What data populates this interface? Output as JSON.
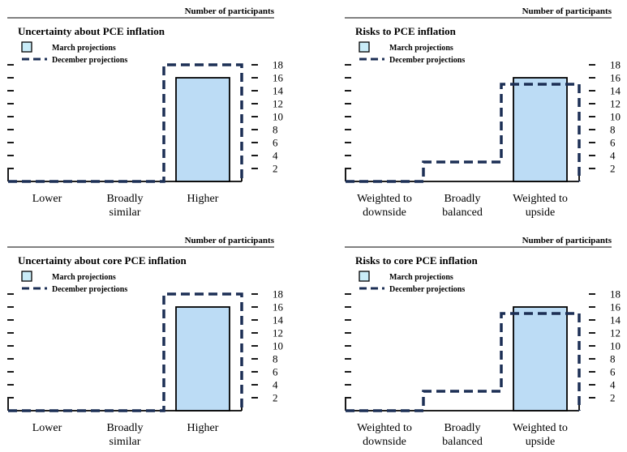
{
  "chart_data": [
    {
      "type": "bar",
      "title": "Uncertainty about PCE inflation",
      "ylabel": "Number of participants",
      "ylim": [
        0,
        18
      ],
      "yticks": [
        2,
        4,
        6,
        8,
        10,
        12,
        14,
        16,
        18
      ],
      "categories": [
        [
          "Lower"
        ],
        [
          "Broadly",
          "similar"
        ],
        [
          "Higher"
        ]
      ],
      "legend": [
        "March projections",
        "December projections"
      ],
      "series": [
        {
          "name": "March projections",
          "style": "bar",
          "values": [
            0,
            0,
            16
          ]
        },
        {
          "name": "December projections",
          "style": "dashed-step",
          "values": [
            0,
            0,
            18
          ]
        }
      ]
    },
    {
      "type": "bar",
      "title": "Risks to PCE inflation",
      "ylabel": "Number of participants",
      "ylim": [
        0,
        18
      ],
      "yticks": [
        2,
        4,
        6,
        8,
        10,
        12,
        14,
        16,
        18
      ],
      "categories": [
        [
          "Weighted to",
          "downside"
        ],
        [
          "Broadly",
          "balanced"
        ],
        [
          "Weighted to",
          "upside"
        ]
      ],
      "legend": [
        "March projections",
        "December projections"
      ],
      "series": [
        {
          "name": "March projections",
          "style": "bar",
          "values": [
            0,
            0,
            16
          ]
        },
        {
          "name": "December projections",
          "style": "dashed-step",
          "values": [
            0,
            3,
            15
          ]
        }
      ]
    },
    {
      "type": "bar",
      "title": "Uncertainty about core PCE inflation",
      "ylabel": "Number of participants",
      "ylim": [
        0,
        18
      ],
      "yticks": [
        2,
        4,
        6,
        8,
        10,
        12,
        14,
        16,
        18
      ],
      "categories": [
        [
          "Lower"
        ],
        [
          "Broadly",
          "similar"
        ],
        [
          "Higher"
        ]
      ],
      "legend": [
        "March projections",
        "December projections"
      ],
      "series": [
        {
          "name": "March projections",
          "style": "bar",
          "values": [
            0,
            0,
            16
          ]
        },
        {
          "name": "December projections",
          "style": "dashed-step",
          "values": [
            0,
            0,
            18
          ]
        }
      ]
    },
    {
      "type": "bar",
      "title": "Risks to core PCE inflation",
      "ylabel": "Number of participants",
      "ylim": [
        0,
        18
      ],
      "yticks": [
        2,
        4,
        6,
        8,
        10,
        12,
        14,
        16,
        18
      ],
      "categories": [
        [
          "Weighted to",
          "downside"
        ],
        [
          "Broadly",
          "balanced"
        ],
        [
          "Weighted to",
          "upside"
        ]
      ],
      "legend": [
        "March projections",
        "December projections"
      ],
      "series": [
        {
          "name": "March projections",
          "style": "bar",
          "values": [
            0,
            0,
            16
          ]
        },
        {
          "name": "December projections",
          "style": "dashed-step",
          "values": [
            0,
            3,
            15
          ]
        }
      ]
    }
  ],
  "colors": {
    "bar_fill": "#bcdcf5",
    "bar_stroke": "#000000",
    "legend_swatch": "#c9ecf8",
    "dashed_line": "#1c2f55",
    "axis": "#000000"
  }
}
